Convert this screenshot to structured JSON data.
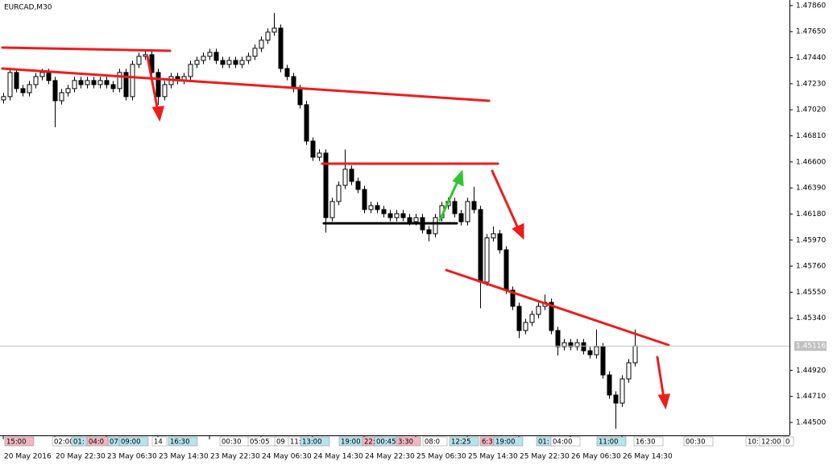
{
  "chart_data": {
    "type": "candlestick",
    "title": "EURCAD,M30",
    "ylim": [
      1.44396,
      1.47905
    ],
    "yticks": [
      {
        "value": 1.4786,
        "label": "1.47860"
      },
      {
        "value": 1.4765,
        "label": "1.47650"
      },
      {
        "value": 1.4744,
        "label": "1.47440"
      },
      {
        "value": 1.4723,
        "label": "1.47230"
      },
      {
        "value": 1.4702,
        "label": "1.47020"
      },
      {
        "value": 1.4681,
        "label": "1.46810"
      },
      {
        "value": 1.466,
        "label": "1.46600"
      },
      {
        "value": 1.4639,
        "label": "1.46390"
      },
      {
        "value": 1.4618,
        "label": "1.46180"
      },
      {
        "value": 1.4597,
        "label": "1.45970"
      },
      {
        "value": 1.4576,
        "label": "1.45760"
      },
      {
        "value": 1.4555,
        "label": "1.45550"
      },
      {
        "value": 1.4534,
        "label": "1.45340"
      },
      {
        "value": 1.4492,
        "label": "1.44920"
      },
      {
        "value": 1.4471,
        "label": "1.44710"
      },
      {
        "value": 1.445,
        "label": "1.44500"
      }
    ],
    "current_price": {
      "value": 1.45116,
      "label": "1.45116"
    },
    "x_labels": [
      "20 May 2016",
      "20 May 22:30",
      "23 May 06:30",
      "23 May 14:30",
      "23 May 22:30",
      "24 May 06:30",
      "24 May 14:30",
      "24 May 22:30",
      "25 May 06:30",
      "25 May 14:30",
      "25 May 22:30",
      "26 May 06:30",
      "26 May 14:30"
    ],
    "session_tags": [
      {
        "text": "15:00",
        "color": "#f4b6c2"
      },
      {
        "text": "02:00",
        "color": "#ffffff"
      },
      {
        "text": "01:",
        "color": "#b6e3ee"
      },
      {
        "text": "04:0",
        "color": "#f4b6c2"
      },
      {
        "text": "07:",
        "color": "#b6e3ee"
      },
      {
        "text": "09:00",
        "color": "#b6e3ee"
      },
      {
        "text": "14",
        "color": "#ffffff"
      },
      {
        "text": "16:30",
        "color": "#b6e3ee"
      },
      {
        "text": "00:30",
        "color": "#ffffff"
      },
      {
        "text": "05:05",
        "color": "#ffffff"
      },
      {
        "text": "09",
        "color": "#ffffff"
      },
      {
        "text": "11:",
        "color": "#ffffff"
      },
      {
        "text": "13:00",
        "color": "#b6e3ee"
      },
      {
        "text": "19:00",
        "color": "#b6e3ee"
      },
      {
        "text": "22:",
        "color": "#f4b6c2"
      },
      {
        "text": "00:45",
        "color": "#b6e3ee"
      },
      {
        "text": "3:30",
        "color": "#f4b6c2"
      },
      {
        "text": "08:0",
        "color": "#ffffff"
      },
      {
        "text": "12:25",
        "color": "#b6e3ee"
      },
      {
        "text": "6:3",
        "color": "#f4b6c2"
      },
      {
        "text": "19:00",
        "color": "#b6e3ee"
      },
      {
        "text": "01:",
        "color": "#b6e3ee"
      },
      {
        "text": "04:00",
        "color": "#ffffff"
      },
      {
        "text": "11:00",
        "color": "#b6e3ee"
      },
      {
        "text": "16:30",
        "color": "#ffffff"
      },
      {
        "text": "00:30",
        "color": "#ffffff"
      },
      {
        "text": "10:",
        "color": "#ffffff"
      },
      {
        "text": "12:00",
        "color": "#ffffff"
      },
      {
        "text": "0",
        "color": "#ffffff"
      }
    ],
    "open": [
      1.471,
      1.47126,
      1.47321,
      1.47191,
      1.47158,
      1.47223,
      1.47288,
      1.47321,
      1.47256,
      1.47093,
      1.47158,
      1.47191,
      1.47256,
      1.47223,
      1.47256,
      1.47223,
      1.47256,
      1.47223,
      1.47191,
      1.47321,
      1.47126,
      1.47386,
      1.47451,
      1.47464,
      1.47321,
      1.47126,
      1.47223,
      1.47288,
      1.47256,
      1.47288,
      1.47386,
      1.47418,
      1.47451,
      1.47483,
      1.47418,
      1.47386,
      1.47418,
      1.47386,
      1.47418,
      1.47451,
      1.47516,
      1.47581,
      1.47646,
      1.47678,
      1.47353,
      1.47288,
      1.47191,
      1.47061,
      1.46768,
      1.46638,
      1.46671,
      1.46151,
      1.46281,
      1.46411,
      1.46541,
      1.46443,
      1.46378,
      1.46216,
      1.46248,
      1.46216,
      1.46183,
      1.46151,
      1.46183,
      1.46151,
      1.46118,
      1.46151,
      1.46053,
      1.46021,
      1.46151,
      1.46248,
      1.46281,
      1.46183,
      1.46118,
      1.46281,
      1.46216,
      1.45631,
      1.45988,
      1.46021,
      1.45891,
      1.45566,
      1.45436,
      1.45241,
      1.45306,
      1.45371,
      1.45436,
      1.45468,
      1.45241,
      1.45111,
      1.45143,
      1.45111,
      1.45143,
      1.45078,
      1.45046,
      1.45111,
      1.44883,
      1.44721,
      1.44656,
      1.44851,
      1.44981
    ],
    "high": [
      1.47156,
      1.47351,
      1.47351,
      1.47221,
      1.47253,
      1.47318,
      1.47351,
      1.47351,
      1.47286,
      1.47188,
      1.47221,
      1.47286,
      1.47286,
      1.47286,
      1.47286,
      1.47286,
      1.47286,
      1.47253,
      1.47351,
      1.47351,
      1.47416,
      1.47481,
      1.47494,
      1.47494,
      1.47351,
      1.47253,
      1.47318,
      1.47318,
      1.47318,
      1.47416,
      1.47448,
      1.47481,
      1.47513,
      1.47513,
      1.47448,
      1.47448,
      1.47448,
      1.47448,
      1.47481,
      1.47546,
      1.47611,
      1.47676,
      1.478,
      1.47708,
      1.47383,
      1.47318,
      1.47221,
      1.47091,
      1.46798,
      1.46701,
      1.46701,
      1.46311,
      1.46441,
      1.467,
      1.46571,
      1.46473,
      1.46408,
      1.46278,
      1.46278,
      1.46246,
      1.46213,
      1.46213,
      1.46213,
      1.46181,
      1.46181,
      1.46181,
      1.46083,
      1.46181,
      1.46278,
      1.46311,
      1.46311,
      1.46213,
      1.46311,
      1.464,
      1.46246,
      1.46018,
      1.4608,
      1.46051,
      1.45921,
      1.45596,
      1.45466,
      1.45336,
      1.45401,
      1.45466,
      1.4553,
      1.45498,
      1.45271,
      1.45173,
      1.45173,
      1.45173,
      1.45173,
      1.45108,
      1.4525,
      1.45141,
      1.44913,
      1.44751,
      1.44881,
      1.45011,
      1.4525
    ],
    "low": [
      1.4707,
      1.47096,
      1.47161,
      1.47128,
      1.47128,
      1.47193,
      1.47258,
      1.47226,
      1.4688,
      1.47063,
      1.47128,
      1.47161,
      1.47193,
      1.47193,
      1.47193,
      1.47193,
      1.47193,
      1.47161,
      1.47161,
      1.47096,
      1.47096,
      1.47356,
      1.47421,
      1.47291,
      1.4706,
      1.47096,
      1.47193,
      1.47226,
      1.47226,
      1.47258,
      1.47356,
      1.47388,
      1.47421,
      1.47388,
      1.47356,
      1.47356,
      1.47356,
      1.47356,
      1.47388,
      1.47421,
      1.47486,
      1.47551,
      1.47616,
      1.47323,
      1.47258,
      1.47161,
      1.47031,
      1.46738,
      1.46608,
      1.46608,
      1.4603,
      1.46121,
      1.46251,
      1.46381,
      1.46413,
      1.46348,
      1.46186,
      1.46186,
      1.46186,
      1.46153,
      1.46121,
      1.46121,
      1.46121,
      1.46088,
      1.46088,
      1.46023,
      1.4596,
      1.45991,
      1.46121,
      1.46218,
      1.46153,
      1.46088,
      1.46088,
      1.46186,
      1.4542,
      1.45601,
      1.45958,
      1.45861,
      1.45536,
      1.45406,
      1.4518,
      1.45211,
      1.45276,
      1.45341,
      1.45406,
      1.45211,
      1.4504,
      1.45081,
      1.45081,
      1.45081,
      1.45048,
      1.45016,
      1.45016,
      1.44853,
      1.44691,
      1.4445,
      1.44626,
      1.44821,
      1.44951
    ],
    "close": [
      1.47126,
      1.47321,
      1.47191,
      1.47158,
      1.47223,
      1.47288,
      1.47321,
      1.47256,
      1.47093,
      1.47158,
      1.47191,
      1.47256,
      1.47223,
      1.47256,
      1.47223,
      1.47256,
      1.47223,
      1.47191,
      1.47321,
      1.47126,
      1.47386,
      1.47451,
      1.47464,
      1.47321,
      1.47126,
      1.47223,
      1.47288,
      1.47256,
      1.47288,
      1.47386,
      1.47418,
      1.47451,
      1.47483,
      1.47418,
      1.47386,
      1.47418,
      1.47386,
      1.47418,
      1.47451,
      1.47516,
      1.47581,
      1.47646,
      1.47678,
      1.47353,
      1.47288,
      1.47191,
      1.47061,
      1.46768,
      1.46638,
      1.46671,
      1.46151,
      1.46281,
      1.46411,
      1.46541,
      1.46443,
      1.46378,
      1.46216,
      1.46248,
      1.46216,
      1.46183,
      1.46151,
      1.46183,
      1.46151,
      1.46118,
      1.46151,
      1.46053,
      1.46021,
      1.46151,
      1.46248,
      1.46281,
      1.46183,
      1.46118,
      1.46281,
      1.46216,
      1.45631,
      1.45988,
      1.46021,
      1.45891,
      1.45566,
      1.45436,
      1.45241,
      1.45306,
      1.45371,
      1.45436,
      1.45468,
      1.45241,
      1.45111,
      1.45143,
      1.45111,
      1.45143,
      1.45078,
      1.45046,
      1.45111,
      1.44883,
      1.44721,
      1.44656,
      1.44851,
      1.44981,
      1.45116
    ]
  }
}
